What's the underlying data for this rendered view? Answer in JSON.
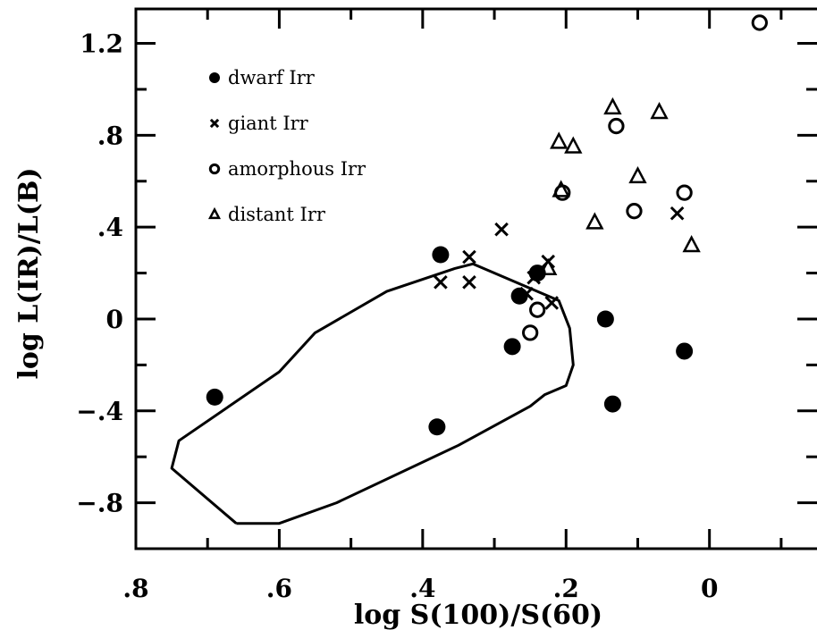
{
  "chart_data": {
    "type": "scatter",
    "xlabel": "log S(100)/S(60)",
    "ylabel": "log L(IR)/L(B)",
    "x_reversed": true,
    "xlim": [
      0.8,
      -0.15
    ],
    "ylim": [
      -1.0,
      1.35
    ],
    "x_ticks": [
      {
        "value": 0.8,
        "label": ".8"
      },
      {
        "value": 0.6,
        "label": ".6"
      },
      {
        "value": 0.4,
        "label": ".4"
      },
      {
        "value": 0.2,
        "label": ".2"
      },
      {
        "value": 0.0,
        "label": "0"
      }
    ],
    "y_ticks": [
      {
        "value": 1.2,
        "label": "1.2"
      },
      {
        "value": 0.8,
        "label": ".8"
      },
      {
        "value": 0.4,
        "label": ".4"
      },
      {
        "value": 0.0,
        "label": "0"
      },
      {
        "value": -0.4,
        "label": "-.4"
      },
      {
        "value": -0.8,
        "label": "-.8"
      }
    ],
    "grid": false,
    "legend": "top-left",
    "series": [
      {
        "name": "dwarf Irr",
        "marker": "filled-circle",
        "points": [
          {
            "x": 0.69,
            "y": -0.34
          },
          {
            "x": 0.38,
            "y": -0.47
          },
          {
            "x": 0.375,
            "y": 0.28
          },
          {
            "x": 0.265,
            "y": 0.1
          },
          {
            "x": 0.24,
            "y": 0.2
          },
          {
            "x": 0.275,
            "y": -0.12
          },
          {
            "x": 0.145,
            "y": 0.0
          },
          {
            "x": 0.135,
            "y": -0.37
          },
          {
            "x": 0.035,
            "y": -0.14
          }
        ]
      },
      {
        "name": "giant Irr",
        "marker": "cross",
        "points": [
          {
            "x": 0.375,
            "y": 0.16
          },
          {
            "x": 0.335,
            "y": 0.27
          },
          {
            "x": 0.335,
            "y": 0.16
          },
          {
            "x": 0.29,
            "y": 0.39
          },
          {
            "x": 0.255,
            "y": 0.11
          },
          {
            "x": 0.245,
            "y": 0.18
          },
          {
            "x": 0.225,
            "y": 0.25
          },
          {
            "x": 0.22,
            "y": 0.07
          },
          {
            "x": 0.045,
            "y": 0.46
          }
        ]
      },
      {
        "name": "amorphous Irr",
        "marker": "open-circle",
        "points": [
          {
            "x": 0.25,
            "y": -0.06
          },
          {
            "x": 0.24,
            "y": 0.04
          },
          {
            "x": 0.205,
            "y": 0.55
          },
          {
            "x": 0.13,
            "y": 0.84
          },
          {
            "x": 0.105,
            "y": 0.47
          },
          {
            "x": 0.035,
            "y": 0.55
          },
          {
            "x": -0.07,
            "y": 1.29
          }
        ]
      },
      {
        "name": "distant Irr",
        "marker": "triangle",
        "points": [
          {
            "x": 0.225,
            "y": 0.22
          },
          {
            "x": 0.21,
            "y": 0.77
          },
          {
            "x": 0.207,
            "y": 0.56
          },
          {
            "x": 0.19,
            "y": 0.75
          },
          {
            "x": 0.16,
            "y": 0.42
          },
          {
            "x": 0.135,
            "y": 0.92
          },
          {
            "x": 0.1,
            "y": 0.62
          },
          {
            "x": 0.07,
            "y": 0.9
          },
          {
            "x": 0.025,
            "y": 0.32
          }
        ]
      }
    ],
    "region": {
      "name": "",
      "points": [
        {
          "x": 0.66,
          "y": -0.89
        },
        {
          "x": 0.6,
          "y": -0.89
        },
        {
          "x": 0.52,
          "y": -0.8
        },
        {
          "x": 0.35,
          "y": -0.55
        },
        {
          "x": 0.25,
          "y": -0.38
        },
        {
          "x": 0.23,
          "y": -0.33
        },
        {
          "x": 0.2,
          "y": -0.29
        },
        {
          "x": 0.19,
          "y": -0.2
        },
        {
          "x": 0.195,
          "y": -0.04
        },
        {
          "x": 0.21,
          "y": 0.08
        },
        {
          "x": 0.33,
          "y": 0.24
        },
        {
          "x": 0.355,
          "y": 0.22
        },
        {
          "x": 0.45,
          "y": 0.12
        },
        {
          "x": 0.55,
          "y": -0.06
        },
        {
          "x": 0.6,
          "y": -0.23
        },
        {
          "x": 0.74,
          "y": -0.53
        },
        {
          "x": 0.75,
          "y": -0.65
        },
        {
          "x": 0.66,
          "y": -0.89
        }
      ]
    }
  }
}
